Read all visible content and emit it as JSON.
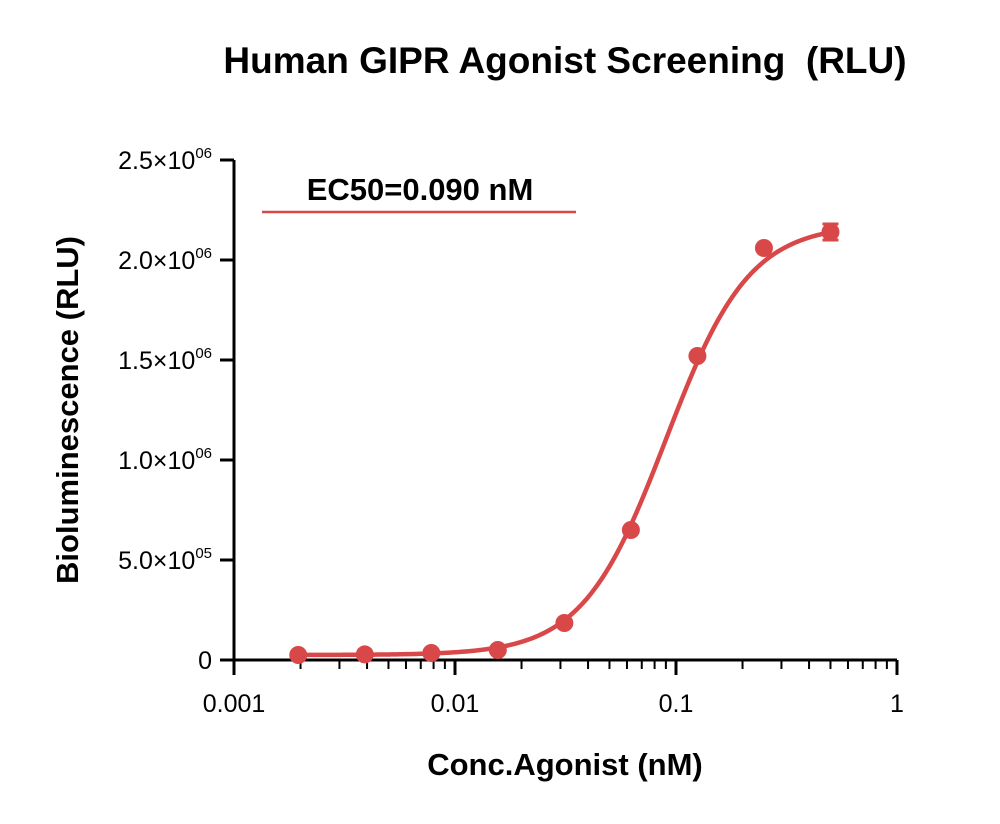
{
  "chart_data": {
    "type": "scatter",
    "title": "Human GIPR Agonist Screening  (RLU)",
    "xlabel": "Conc.Agonist (nM)",
    "ylabel": "Bioluminescence (RLU)",
    "x_scale": "log",
    "xlim": [
      0.001,
      1
    ],
    "ylim": [
      0,
      2500000
    ],
    "x_ticks": [
      {
        "value": 0.001,
        "label": "0.001"
      },
      {
        "value": 0.01,
        "label": "0.01"
      },
      {
        "value": 0.1,
        "label": "0.1"
      },
      {
        "value": 1,
        "label": "1"
      }
    ],
    "y_ticks": [
      {
        "value": 0,
        "mantissa": "0",
        "exponent": ""
      },
      {
        "value": 500000,
        "mantissa": "5.0×10",
        "exponent": "05"
      },
      {
        "value": 1000000,
        "mantissa": "1.0×10",
        "exponent": "06"
      },
      {
        "value": 1500000,
        "mantissa": "1.5×10",
        "exponent": "06"
      },
      {
        "value": 2000000,
        "mantissa": "2.0×10",
        "exponent": "06"
      },
      {
        "value": 2500000,
        "mantissa": "2.5×10",
        "exponent": "06"
      }
    ],
    "series": [
      {
        "color": "#d94848",
        "x": [
          0.001953,
          0.003906,
          0.0078125,
          0.015625,
          0.03125,
          0.0625,
          0.125,
          0.25,
          0.5
        ],
        "y": [
          25000,
          28000,
          35000,
          50000,
          185000,
          650000,
          1520000,
          2060000,
          2140000
        ],
        "error": [
          0,
          0,
          0,
          0,
          0,
          0,
          0,
          0,
          40000
        ]
      }
    ],
    "fit": {
      "model": "4PL",
      "bottom": 25000,
      "top": 2180000,
      "ec50": 0.09,
      "hill": 2.3
    },
    "annotation": "EC50=0.090 nM",
    "grid": false,
    "legend": "none"
  }
}
